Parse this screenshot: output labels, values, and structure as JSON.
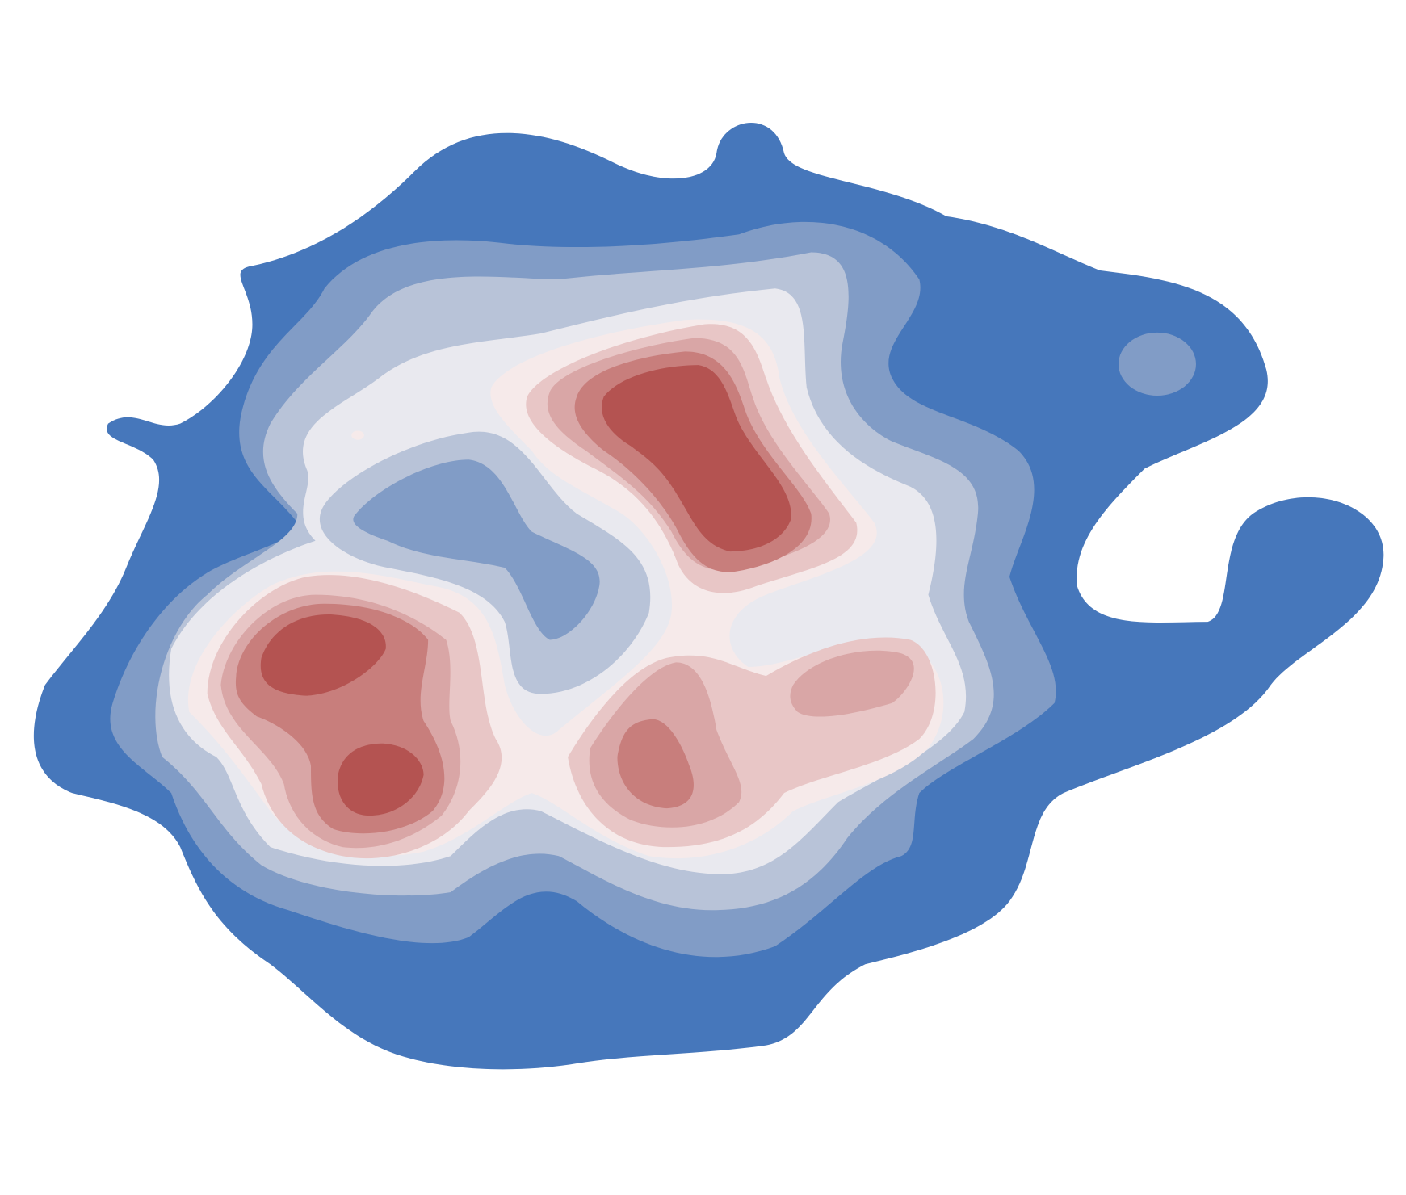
{
  "chart_data": {
    "type": "contour",
    "colors": [
      "#4677bb",
      "#819cc6",
      "#b8c3d8",
      "#e9e9ef",
      "#f6eaea",
      "#e8c6c6",
      "#d9a6a6",
      "#c87e7c",
      "#b45351"
    ]
  }
}
